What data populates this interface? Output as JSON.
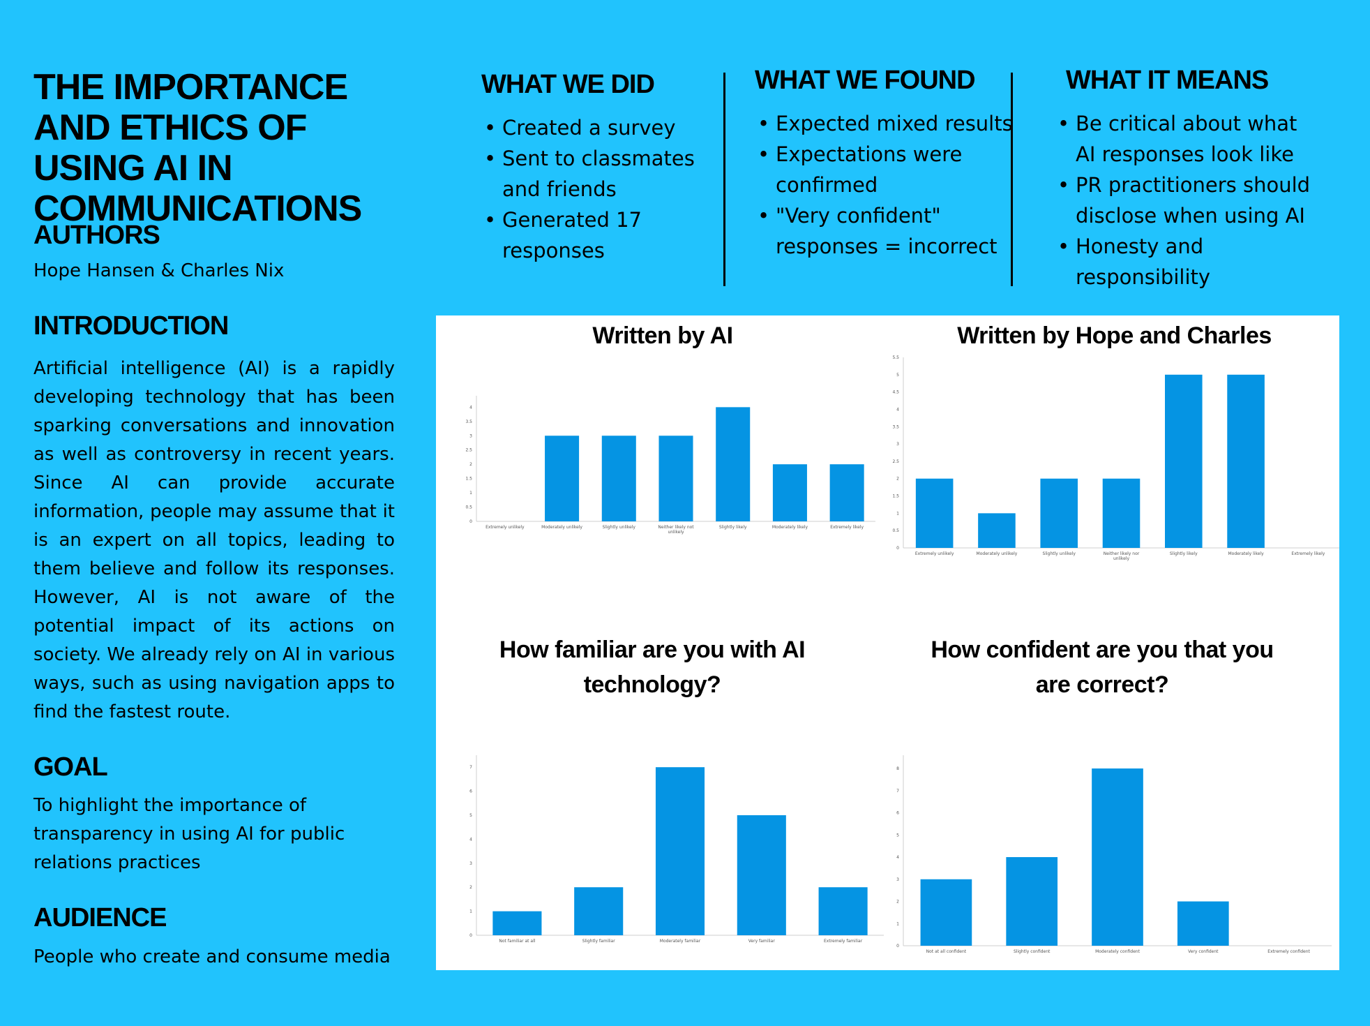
{
  "title": "THE IMPORTANCE AND ETHICS OF USING AI IN COMMUNICATIONS",
  "authors": {
    "heading": "AUTHORS",
    "text": "Hope Hansen & Charles Nix"
  },
  "introduction": {
    "heading": "INTRODUCTION",
    "text": "Artificial intelligence (AI) is a rapidly developing technology that has been sparking conversations and innovation as well as controversy in recent years. Since AI can provide accurate information, people may assume that it is an expert on all topics, leading to them believe and follow its responses. However, AI is not aware of the potential impact of its actions on society. We already rely on AI in various ways, such as using navigation apps to find the fastest route."
  },
  "goal": {
    "heading": "GOAL",
    "text": "To highlight the importance of transparency in using AI for public relations practices"
  },
  "audience": {
    "heading": "AUDIENCE",
    "text": "People who create and consume media"
  },
  "what_we_did": {
    "heading": "WHAT WE DID",
    "items": [
      "Created a survey",
      "Sent to classmates and friends",
      "Generated 17 responses"
    ]
  },
  "what_we_found": {
    "heading": "WHAT WE FOUND",
    "items": [
      "Expected mixed results",
      "Expectations were confirmed",
      "\"Very confident\" responses = incorrect"
    ]
  },
  "what_it_means": {
    "heading": "WHAT IT MEANS",
    "items": [
      "Be critical about what AI responses look like",
      "PR practitioners should disclose when using AI",
      "Honesty and responsibility"
    ]
  },
  "bar_color": "#0594e3",
  "chart_data": [
    {
      "type": "bar",
      "title": "Written by AI",
      "categories": [
        "Extremely unlikely",
        "Moderately unlikely",
        "Slightly unlikely",
        "Neither likely not unlikely",
        "Slightly likely",
        "Moderately likely",
        "Extremely likely"
      ],
      "values": [
        0,
        3,
        3,
        3,
        4,
        2,
        2
      ],
      "yticks": [
        "0",
        "0.5",
        "1",
        "1.5",
        "2",
        "2.5",
        "3",
        "3.5",
        "4"
      ],
      "ylim": [
        0,
        4.4
      ]
    },
    {
      "type": "bar",
      "title": "Written by Hope and Charles",
      "categories": [
        "Extremely unlikely",
        "Moderately unlikely",
        "Slightly unlikely",
        "Neither likely nor unlikely",
        "Slightly likely",
        "Moderately likely",
        "Extremely likely"
      ],
      "values": [
        2,
        1,
        2,
        2,
        5,
        5,
        0
      ],
      "yticks": [
        "0",
        "0.5",
        "1",
        "1.5",
        "2",
        "2.5",
        "3",
        "3.5",
        "4",
        "4.5",
        "5",
        "5.5"
      ],
      "ylim": [
        0,
        5.5
      ]
    },
    {
      "type": "bar",
      "title": "How familiar are you with AI technology?",
      "categories": [
        "Not familiar at all",
        "Slightly familiar",
        "Moderately familiar",
        "Very familiar",
        "Extremely familiar"
      ],
      "values": [
        1,
        2,
        7,
        5,
        2
      ],
      "yticks": [
        "0",
        "1",
        "2",
        "3",
        "4",
        "5",
        "6",
        "7"
      ],
      "ylim": [
        0,
        7.5
      ]
    },
    {
      "type": "bar",
      "title": "How confident are you that you are correct?",
      "categories": [
        "Not at all confident",
        "Slightly confident",
        "Moderately confident",
        "Very confident",
        "Extremely confident"
      ],
      "values": [
        3,
        4,
        8,
        2,
        0
      ],
      "yticks": [
        "0",
        "1",
        "2",
        "3",
        "4",
        "5",
        "6",
        "7",
        "8"
      ],
      "ylim": [
        0,
        8.6
      ]
    }
  ]
}
